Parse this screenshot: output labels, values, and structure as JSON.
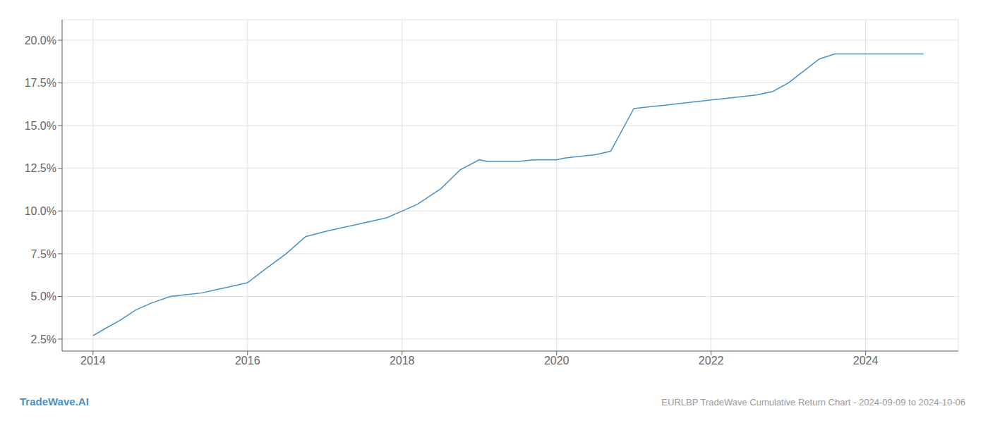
{
  "chart_data": {
    "type": "line",
    "title": "EURLBP TradeWave Cumulative Return Chart - 2024-09-09 to 2024-10-06",
    "annotations": [
      "TradeWave.AI"
    ],
    "color": "#4a90c4",
    "grid": true,
    "xlim": [
      2013.6,
      2025.2
    ],
    "ylim": [
      0.018,
      0.212
    ],
    "xticks": [
      2014,
      2016,
      2018,
      2020,
      2022,
      2024
    ],
    "yticks": [
      {
        "value": 0.025,
        "label": "2.5%"
      },
      {
        "value": 0.05,
        "label": "5.0%"
      },
      {
        "value": 0.075,
        "label": "7.5%"
      },
      {
        "value": 0.1,
        "label": "10.0%"
      },
      {
        "value": 0.125,
        "label": "12.5%"
      },
      {
        "value": 0.15,
        "label": "15.0%"
      },
      {
        "value": 0.175,
        "label": "17.5%"
      },
      {
        "value": 0.2,
        "label": "20.0%"
      }
    ],
    "x": [
      2014.0,
      2014.15,
      2014.35,
      2014.55,
      2014.75,
      2015.0,
      2015.2,
      2015.4,
      2015.6,
      2015.8,
      2016.0,
      2016.2,
      2016.5,
      2016.75,
      2017.0,
      2017.2,
      2017.5,
      2017.8,
      2018.0,
      2018.2,
      2018.5,
      2018.75,
      2019.0,
      2019.1,
      2019.3,
      2019.5,
      2019.7,
      2019.9,
      2020.0,
      2020.1,
      2020.3,
      2020.5,
      2020.7,
      2021.0,
      2021.2,
      2021.4,
      2021.6,
      2021.8,
      2022.0,
      2022.2,
      2022.4,
      2022.6,
      2022.8,
      2023.0,
      2023.2,
      2023.4,
      2023.6,
      2024.0,
      2024.3,
      2024.6,
      2024.75
    ],
    "values": [
      0.027,
      0.031,
      0.036,
      0.042,
      0.046,
      0.05,
      0.051,
      0.052,
      0.054,
      0.056,
      0.058,
      0.065,
      0.075,
      0.085,
      0.088,
      0.09,
      0.093,
      0.096,
      0.1,
      0.104,
      0.113,
      0.124,
      0.13,
      0.129,
      0.129,
      0.129,
      0.13,
      0.13,
      0.13,
      0.131,
      0.132,
      0.133,
      0.135,
      0.16,
      0.161,
      0.162,
      0.163,
      0.164,
      0.165,
      0.166,
      0.167,
      0.168,
      0.17,
      0.175,
      0.182,
      0.189,
      0.192,
      0.192,
      0.192,
      0.192,
      0.192
    ]
  }
}
